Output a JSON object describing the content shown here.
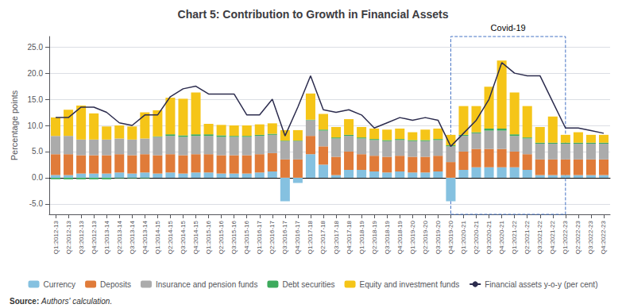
{
  "chart_data": {
    "type": "bar",
    "title": "Chart 5: Contribution to Growth in Financial Assets",
    "ylabel": "Percentage points",
    "stacked": true,
    "grid": true,
    "legend": "bottom",
    "ylim": [
      -7.0,
      27.0
    ],
    "yticks": [
      {
        "value": -5.0,
        "label": "-5.0"
      },
      {
        "value": 0.0,
        "label": "0.0"
      },
      {
        "value": 5.0,
        "label": "5.0"
      },
      {
        "value": 10.0,
        "label": "10.0"
      },
      {
        "value": 15.0,
        "label": "15.0"
      },
      {
        "value": 20.0,
        "label": "20.0"
      },
      {
        "value": 25.0,
        "label": "25.0"
      }
    ],
    "categories": [
      "Q1:2012-13",
      "Q2:2012-13",
      "Q3:2012-13",
      "Q4:2012-13",
      "Q1:2013-14",
      "Q2:2013-14",
      "Q3:2013-14",
      "Q4:2013-14",
      "Q1:2014-15",
      "Q2:2014-15",
      "Q3:2014-15",
      "Q4:2014-15",
      "Q1:2015-16",
      "Q2:2015-16",
      "Q3:2015-16",
      "Q4:2015-16",
      "Q1:2016-17",
      "Q2:2016-17",
      "Q3:2016-17",
      "Q4:2016-17",
      "Q1:2017-18",
      "Q2:2017-18",
      "Q3:2017-18",
      "Q4:2017-18",
      "Q1:2018-19",
      "Q2:2018-19",
      "Q3:2018-19",
      "Q4:2018-19",
      "Q1:2019-20",
      "Q2:2019-20",
      "Q3:2019-20",
      "Q4:2019-20",
      "Q1:2020-21",
      "Q2:2020-21",
      "Q3:2020-21",
      "Q4:2020-21",
      "Q1:2021-22",
      "Q2:2021-22",
      "Q3:2021-22",
      "Q4:2021-22",
      "Q1:2022-23",
      "Q2:2022-23",
      "Q3:2022-23",
      "Q4:2022-23"
    ],
    "series": [
      {
        "name": "Currency",
        "type": "bar",
        "color": "#85C1E0",
        "values": [
          0.5,
          0.5,
          0.8,
          0.8,
          0.8,
          1.0,
          0.8,
          1.0,
          0.8,
          1.0,
          0.8,
          1.0,
          1.0,
          0.8,
          0.8,
          0.8,
          1.0,
          1.2,
          -4.5,
          -1.0,
          4.5,
          2.5,
          0.5,
          1.5,
          1.5,
          1.2,
          1.0,
          1.2,
          1.0,
          1.0,
          1.2,
          -4.5,
          1.5,
          2.0,
          2.0,
          2.0,
          2.0,
          1.5,
          0.5,
          0.5,
          0.5,
          0.5,
          0.5,
          0.5
        ]
      },
      {
        "name": "Deposits",
        "type": "bar",
        "color": "#E07B39",
        "values": [
          4.0,
          4.0,
          3.5,
          3.5,
          3.5,
          3.5,
          3.5,
          3.5,
          3.5,
          3.5,
          3.5,
          3.5,
          3.5,
          3.5,
          3.5,
          3.5,
          3.5,
          3.5,
          3.5,
          3.5,
          3.5,
          3.5,
          3.5,
          3.5,
          3.0,
          3.0,
          3.0,
          3.0,
          3.0,
          3.0,
          3.0,
          3.0,
          3.5,
          3.5,
          3.5,
          3.5,
          3.0,
          3.0,
          3.0,
          3.0,
          3.0,
          3.0,
          3.0,
          3.0
        ]
      },
      {
        "name": "Insurance and pension funds",
        "type": "bar",
        "color": "#ABABAB",
        "values": [
          3.5,
          3.5,
          3.0,
          3.0,
          3.0,
          3.0,
          3.0,
          3.0,
          3.5,
          3.5,
          3.5,
          3.5,
          3.5,
          3.5,
          3.5,
          3.5,
          3.5,
          3.5,
          3.5,
          3.5,
          3.0,
          3.0,
          3.5,
          3.0,
          3.0,
          3.0,
          3.0,
          3.0,
          3.0,
          3.0,
          3.0,
          3.0,
          3.0,
          3.0,
          3.5,
          3.5,
          3.0,
          3.0,
          3.0,
          3.0,
          3.0,
          3.0,
          3.0,
          3.0
        ]
      },
      {
        "name": "Debt securities",
        "type": "bar",
        "color": "#3DAA5C",
        "values": [
          -0.3,
          -0.3,
          -0.3,
          -0.3,
          -0.3,
          -0.1,
          -0.1,
          -0.1,
          0.1,
          0.3,
          0.3,
          0.3,
          0.3,
          0.3,
          0.2,
          0.2,
          0.2,
          0.2,
          0.1,
          0.1,
          0.1,
          0.2,
          0.2,
          0.2,
          0.2,
          0.2,
          0.2,
          0.2,
          0.2,
          0.2,
          0.2,
          0.2,
          0.2,
          0.2,
          0.4,
          0.4,
          0.3,
          0.2,
          0.2,
          0.2,
          0.2,
          0.2,
          0.2,
          0.2
        ]
      },
      {
        "name": "Equity and investment funds",
        "type": "bar",
        "color": "#F5C518",
        "values": [
          3.5,
          5.0,
          6.5,
          5.0,
          2.5,
          2.5,
          2.5,
          5.0,
          5.0,
          7.0,
          7.0,
          8.0,
          2.0,
          2.0,
          2.0,
          2.0,
          2.0,
          2.0,
          2.0,
          2.0,
          5.0,
          3.0,
          2.0,
          3.0,
          2.0,
          2.0,
          2.0,
          2.0,
          1.5,
          2.0,
          2.0,
          2.0,
          5.5,
          5.0,
          8.0,
          13.0,
          8.0,
          6.0,
          3.0,
          5.0,
          1.5,
          2.0,
          1.5,
          1.5
        ]
      },
      {
        "name": "Financial assets y-o-y (per cent)",
        "type": "line",
        "color": "#2C2C4E",
        "values": [
          11.5,
          11.5,
          13.5,
          13.5,
          12.5,
          10.5,
          10.0,
          12.0,
          12.0,
          15.5,
          17.0,
          17.5,
          16.0,
          16.0,
          16.0,
          12.0,
          12.0,
          15.0,
          8.0,
          13.5,
          19.5,
          13.0,
          12.5,
          13.0,
          12.0,
          9.5,
          10.5,
          11.5,
          11.0,
          11.5,
          11.0,
          6.0,
          8.5,
          11.0,
          15.0,
          22.0,
          20.0,
          19.5,
          19.5,
          14.5,
          9.5,
          9.5,
          9.0,
          8.5
        ]
      }
    ],
    "annotations": [
      {
        "text": "Covid-19",
        "from": "Q4:2019-20",
        "to": "Q1:2022-23"
      }
    ],
    "source": {
      "label": "Source:",
      "text": "Authors' calculation."
    }
  }
}
